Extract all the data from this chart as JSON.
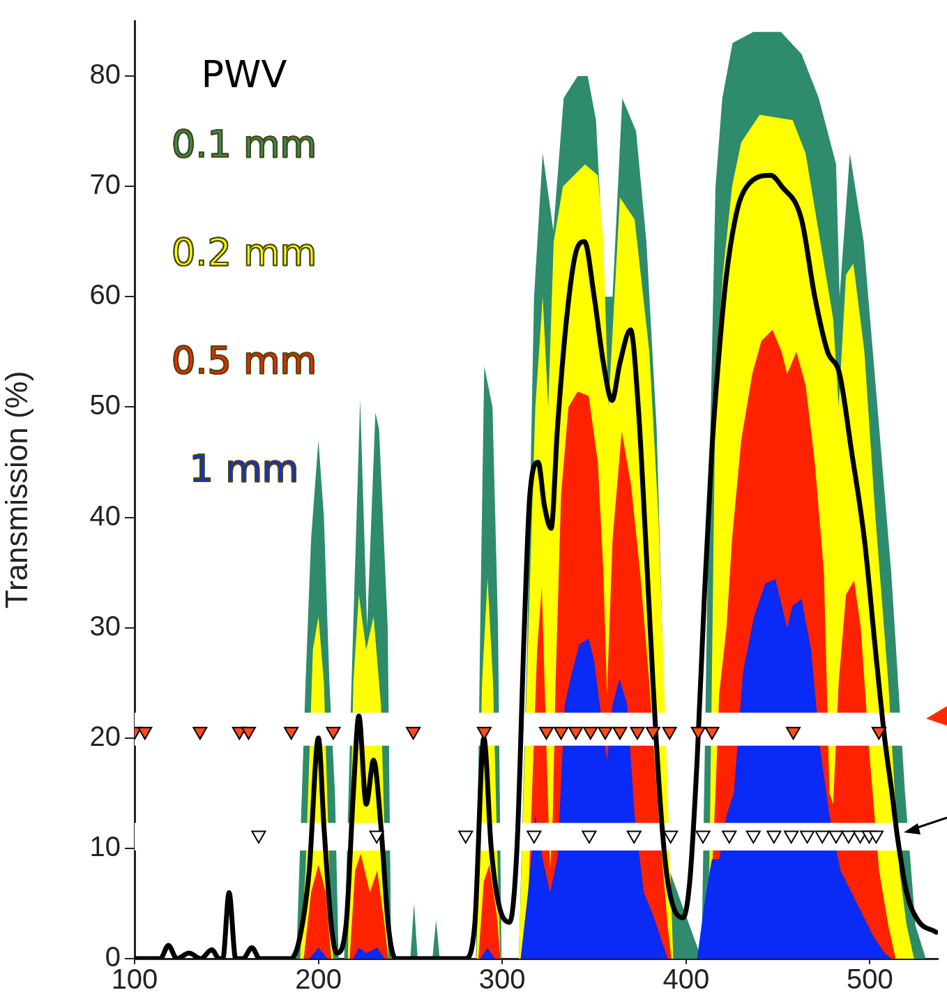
{
  "chart_data": {
    "type": "area",
    "ylabel": "Transmission (%)",
    "legend_title": "PWV",
    "legend": "top left",
    "grid": false,
    "xlim": [
      100,
      537
    ],
    "xticks": [
      100,
      200,
      300,
      400,
      500
    ],
    "ylim": [
      0,
      85
    ],
    "yticks": [
      0,
      10,
      20,
      30,
      40,
      50,
      60,
      70,
      80
    ],
    "bands": [
      {
        "axis": "y",
        "from": 19.3,
        "to": 22.3,
        "color": "#ffffff"
      },
      {
        "axis": "y",
        "from": 9.8,
        "to": 12.3,
        "color": "#ffffff"
      }
    ],
    "series": [
      {
        "name": "0.1 mm",
        "type": "area",
        "color": "#2e8b6b",
        "x": [
          100,
          188,
          193,
          196,
          200,
          203,
          206,
          209,
          211,
          214,
          218,
          222.7,
          226.5,
          231,
          233,
          237.7,
          239.6,
          250,
          252,
          254,
          262,
          264,
          266,
          284,
          285.7,
          288,
          290.2,
          294.7,
          297.7,
          299.6,
          309,
          313.5,
          317.3,
          322,
          327.8,
          333.4,
          341,
          346.5,
          351,
          355.9,
          360,
          365.3,
          372.8,
          378.4,
          384,
          387.8,
          391,
          408.4,
          412.2,
          416,
          419.7,
          425.3,
          436.6,
          451.6,
          462.8,
          472.2,
          481.6,
          483.5,
          489.1,
          496.6,
          504.1,
          511.6,
          519.1,
          524.8,
          530.4,
          537
        ],
        "values": [
          0,
          0,
          25,
          38,
          47,
          40,
          25,
          15,
          0,
          0,
          25,
          50.7,
          30,
          49.5,
          48,
          30,
          0,
          0,
          5,
          0,
          0,
          3.5,
          0,
          0,
          0,
          30,
          53.7,
          50,
          30,
          0,
          0,
          28,
          60,
          73,
          66,
          78,
          80,
          80,
          76,
          60,
          60,
          78,
          75,
          65,
          48,
          25,
          8,
          0,
          40,
          70,
          78,
          83,
          84,
          84,
          82,
          78,
          72,
          60,
          73,
          65,
          50,
          35,
          15,
          3,
          0,
          0
        ]
      },
      {
        "name": "0.2 mm",
        "type": "area",
        "color": "#ffff00",
        "x": [
          100,
          190,
          193,
          197,
          200,
          203,
          206,
          208,
          216,
          219,
          222,
          226,
          230,
          234,
          237,
          238,
          286,
          289,
          292,
          295,
          298,
          299,
          309,
          313,
          318,
          322,
          325,
          328,
          333,
          345,
          352,
          355,
          357.8,
          364,
          372,
          380,
          385,
          390,
          393,
          412,
          414,
          416,
          420,
          425,
          430,
          440,
          458,
          465,
          470,
          475,
          480,
          483,
          487,
          491,
          497,
          503,
          510,
          516,
          520,
          524,
          537
        ],
        "values": [
          0,
          0,
          8,
          28,
          31,
          25,
          8,
          0,
          0,
          25,
          33,
          28,
          31,
          23,
          5,
          0,
          0,
          25,
          34.5,
          25,
          5,
          0,
          0,
          23,
          50,
          60,
          50,
          65,
          70,
          72,
          71,
          65,
          50,
          69,
          67,
          55,
          40,
          15,
          0,
          0,
          25,
          52,
          62,
          70,
          74,
          76.5,
          76,
          73,
          68,
          63,
          58,
          50,
          62,
          63,
          55,
          40,
          25,
          8,
          3,
          0,
          0
        ]
      },
      {
        "name": "0.5 mm",
        "type": "area",
        "color": "#ff2200",
        "x": [
          100,
          192,
          196,
          200,
          204,
          207,
          217,
          220,
          223,
          228,
          232,
          236,
          238,
          287,
          290,
          293,
          297,
          299,
          313,
          316,
          319,
          321.5,
          326,
          327.5,
          329,
          332,
          336,
          341,
          347,
          352,
          355,
          357,
          360,
          365,
          370,
          375,
          380,
          385,
          390,
          392,
          412,
          416,
          418,
          422,
          425,
          430,
          436,
          441,
          447,
          452,
          455,
          460,
          465,
          470,
          475,
          478,
          480,
          483,
          487,
          491.4,
          495,
          500,
          505,
          510,
          514,
          537
        ],
        "values": [
          0,
          0,
          6,
          8.5,
          6,
          0,
          0,
          8,
          9.5,
          6,
          8,
          3,
          0,
          0,
          7,
          8.5,
          4,
          0,
          0,
          14,
          28,
          33.7,
          8,
          13,
          25,
          42,
          50,
          51.4,
          51,
          45,
          35,
          24,
          38,
          47.8,
          43,
          35,
          25,
          13,
          3,
          0,
          0,
          15,
          24,
          30,
          38,
          47,
          53,
          56,
          57,
          55,
          53,
          55,
          52,
          45,
          35,
          15,
          14,
          25,
          33,
          34.3,
          30,
          18,
          8,
          3,
          0,
          0
        ]
      },
      {
        "name": "1 mm",
        "type": "area",
        "color": "#0a2af5",
        "x": [
          100,
          195,
          200,
          205,
          219,
          222,
          226,
          232,
          236,
          288,
          292,
          296,
          310,
          314,
          318,
          322,
          326,
          330,
          334,
          338,
          342,
          347,
          350,
          353,
          357,
          360,
          363.8,
          368,
          372,
          377,
          382,
          386,
          390,
          406,
          410,
          414,
          418,
          422,
          426,
          431,
          437,
          443,
          448.6,
          455,
          458,
          462.8,
          468,
          473,
          478,
          484,
          490,
          496,
          502,
          508,
          512,
          537
        ],
        "values": [
          0,
          0,
          1,
          0,
          0,
          1,
          0.5,
          1,
          0,
          0,
          1,
          0,
          0,
          6,
          13,
          9,
          6,
          9,
          23,
          26,
          28.5,
          29,
          27,
          23,
          18,
          23,
          25.4,
          23,
          13,
          6,
          4,
          2,
          0,
          0,
          5,
          9,
          9,
          13,
          15,
          26,
          31,
          34,
          34.4,
          30,
          32,
          32.6,
          28,
          19,
          13,
          8,
          6,
          4,
          2,
          0.5,
          0,
          0
        ]
      },
      {
        "type": "line",
        "color": "#000000",
        "line_style": "solid",
        "x": [
          100,
          114,
          118.4,
          123,
          129.6,
          136,
          142,
          146,
          148,
          151.4,
          155,
          159,
          163.8,
          168,
          185,
          190,
          195,
          200,
          203,
          207,
          210,
          215,
          219,
          222,
          226,
          230,
          234,
          238,
          242,
          280,
          285,
          290,
          294,
          298,
          304,
          308,
          312,
          315,
          319.5,
          323,
          326.6,
          330,
          335,
          340,
          344.7,
          350,
          355,
          359.7,
          364,
          369.8,
          374,
          378,
          382,
          386,
          390,
          398.3,
          402,
          406,
          410,
          414,
          418,
          422,
          428,
          433,
          446,
          452,
          462.8,
          470,
          477,
          483.5,
          490,
          497,
          503,
          508,
          512,
          515,
          520,
          526,
          536
        ],
        "values": [
          0,
          0,
          1.2,
          0,
          0.5,
          0,
          0.8,
          0,
          0,
          6,
          0,
          0,
          1,
          0,
          0,
          2,
          8,
          20,
          12,
          3,
          0.5,
          3,
          15,
          22,
          14,
          18,
          12,
          3,
          0,
          0,
          3,
          20,
          10,
          5,
          3.3,
          10,
          30,
          42,
          45,
          41,
          39,
          48,
          58,
          64,
          65,
          60,
          54,
          50.6,
          54,
          57,
          50,
          38,
          25,
          14,
          7,
          3.7,
          7,
          18,
          33,
          46,
          55,
          62,
          68,
          70,
          71,
          70,
          67,
          60,
          55,
          53,
          46,
          38,
          28,
          20,
          15,
          11,
          6,
          3.5,
          2.4
        ]
      },
      {
        "type": "scatter",
        "marker": "triangle",
        "color": "#ff4a1c",
        "x": [
          100,
          105.6,
          135.6,
          157,
          162,
          185.2,
          208.1,
          251.6,
          290.2,
          324,
          332,
          340,
          348,
          356,
          364,
          373.5,
          382,
          391,
          406.6,
          414.1,
          458.3,
          504.9
        ],
        "values": [
          20.6,
          20.6,
          20.6,
          20.6,
          20.6,
          20.6,
          20.6,
          20.6,
          20.6,
          20.6,
          20.6,
          20.6,
          20.6,
          20.6,
          20.6,
          20.6,
          20.6,
          20.6,
          20.6,
          20.6,
          20.6,
          20.6
        ]
      },
      {
        "type": "scatter",
        "marker": "triangle",
        "color": "#ffffff",
        "x": [
          167.5,
          231.7,
          280.1,
          317.3,
          347.3,
          371.7,
          391.6,
          409.2,
          423.5,
          436.6,
          447.8,
          457.2,
          465.9,
          474.1,
          481.6,
          488.4,
          494.7,
          499.6,
          503.4
        ],
        "values": [
          11.2,
          11.2,
          11.2,
          11.2,
          11.2,
          11.2,
          11.2,
          11.2,
          11.2,
          11.2,
          11.2,
          11.2,
          11.2,
          11.2,
          11.2,
          11.2,
          11.2,
          11.2,
          11.2
        ]
      }
    ]
  }
}
